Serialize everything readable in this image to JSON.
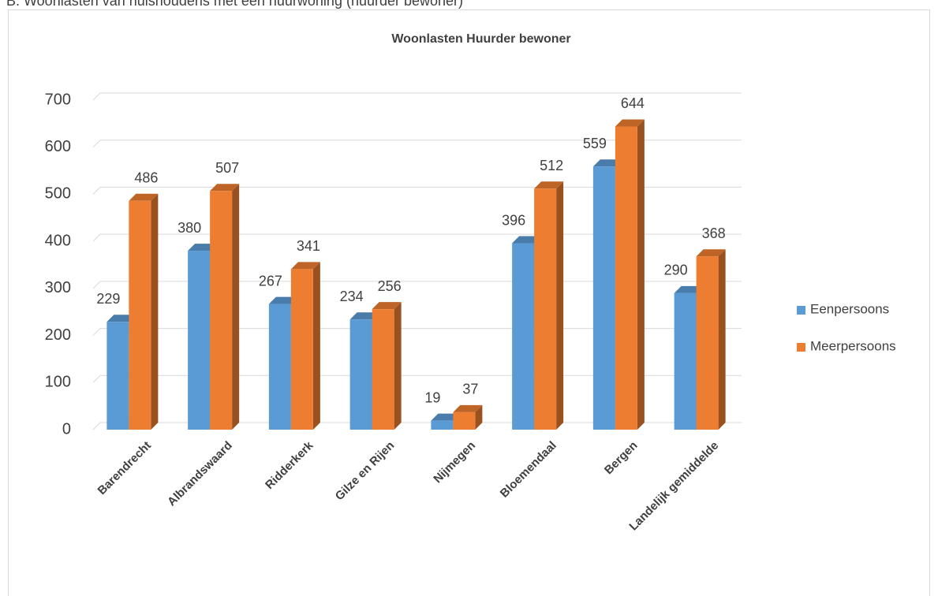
{
  "heading": "B. Woonlasten van huishoudens met een huurwoning (huurder bewoner)",
  "chart_data": {
    "type": "bar3d",
    "title": "Woonlasten Huurder bewoner",
    "categories": [
      "Barendrecht",
      "Albrandswaard",
      "Ridderkerk",
      "Gilze en Rijen",
      "Nijmegen",
      "Bloemendaal",
      "Bergen",
      "Landelijk gemiddelde"
    ],
    "series": [
      {
        "name": "Eenpersoons",
        "color": "#5b9bd5",
        "values": [
          229,
          380,
          267,
          234,
          19,
          396,
          559,
          290
        ]
      },
      {
        "name": "Meerpersoons",
        "color": "#ed7d31",
        "values": [
          486,
          507,
          341,
          256,
          37,
          512,
          644,
          368
        ]
      }
    ],
    "ylim": [
      0,
      700
    ],
    "yticks": [
      0,
      100,
      200,
      300,
      400,
      500,
      600,
      700
    ],
    "grid": true,
    "legend": "right"
  }
}
